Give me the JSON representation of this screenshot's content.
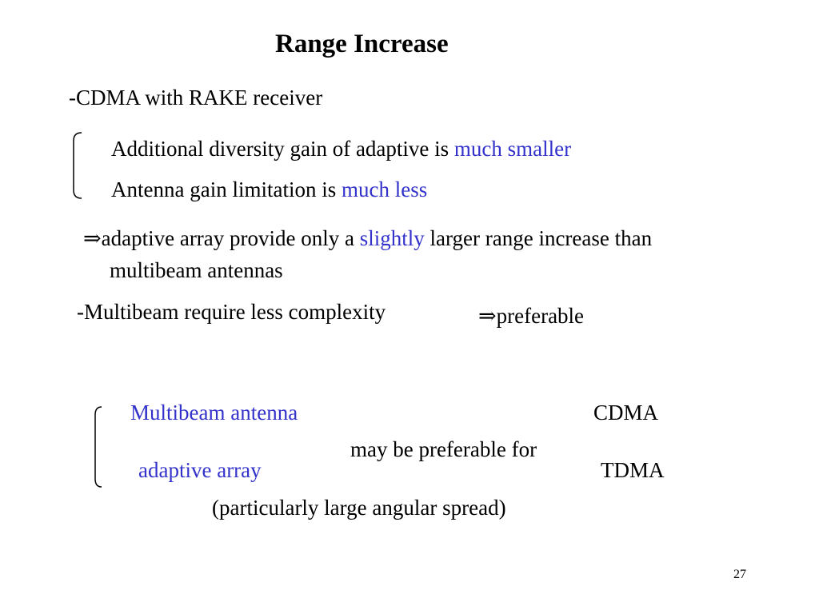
{
  "slide": {
    "title": "Range Increase",
    "cdma_heading": "-CDMA with RAKE receiver",
    "group1": {
      "line1_text": "Additional diversity gain of adaptive is ",
      "line1_highlight": "much smaller",
      "line2_text": "Antenna gain limitation is ",
      "line2_highlight": "much less"
    },
    "implication": {
      "arrow": "⇒",
      "text_before": "adaptive array provide only a ",
      "highlight": "slightly",
      "text_after": " larger range increase than",
      "continuation": "multibeam antennas"
    },
    "multibeam_line": {
      "text": "-Multibeam require less complexity",
      "arrow": "⇒",
      "conclusion": "preferable"
    },
    "comparison": {
      "option1": "Multibeam antenna",
      "option2": "adaptive array",
      "connector": "may be preferable for",
      "target1": "CDMA",
      "target2": "TDMA",
      "note": "(particularly  large angular spread)"
    },
    "page_number": "27"
  },
  "colors": {
    "text": "#000000",
    "highlight": "#3333cc",
    "background": "#ffffff"
  }
}
